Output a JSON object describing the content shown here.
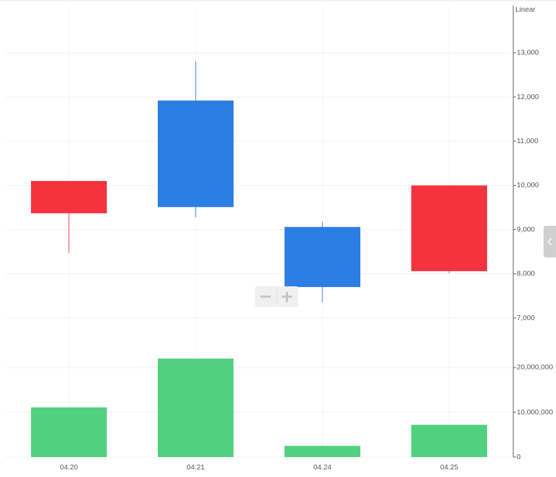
{
  "chart_data": [
    {
      "type": "candlestick",
      "scale_label": "Linear",
      "open": [
        9370,
        11920,
        9060,
        8060
      ],
      "high": [
        10100,
        12810,
        9180,
        10000
      ],
      "low": [
        8470,
        9280,
        7360,
        8010
      ],
      "close": [
        10100,
        9510,
        7700,
        10000
      ],
      "up_color": "#f4333f",
      "down_color": "#2b7ee3",
      "ylim": [
        7000,
        14040
      ],
      "yticks": [
        {
          "value": 7000,
          "label": "7,000"
        },
        {
          "value": 8000,
          "label": "8,000"
        },
        {
          "value": 9000,
          "label": "9,000"
        },
        {
          "value": 10000,
          "label": "10,000"
        },
        {
          "value": 11000,
          "label": "11,000"
        },
        {
          "value": 12000,
          "label": "12,000"
        },
        {
          "value": 13000,
          "label": "13,000"
        }
      ],
      "grid": true
    },
    {
      "type": "bar",
      "categories": [
        "04.20",
        "04.21",
        "04.24",
        "04.25"
      ],
      "values": [
        11100000,
        22000000,
        2500000,
        7200000
      ],
      "color": "#51d17e",
      "ylim": [
        0,
        30300000
      ],
      "yticks": [
        0,
        {
          "value": 10000000,
          "label": "10,000,000"
        },
        {
          "value": 20000000,
          "label": "20,000,000"
        }
      ],
      "grid": true
    }
  ]
}
